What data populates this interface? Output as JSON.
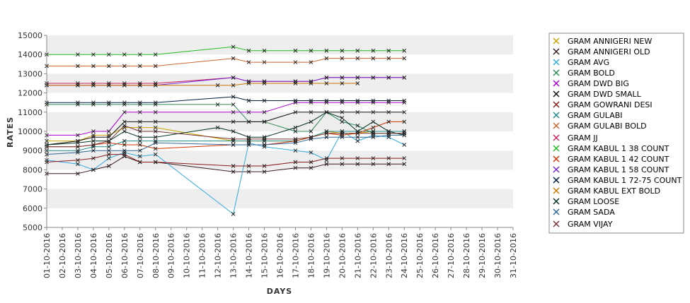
{
  "chart_data": {
    "type": "line",
    "xlabel": "DAYS",
    "ylabel": "RATES",
    "ylim": [
      5000,
      15000
    ],
    "yticks": [
      5000,
      6000,
      7000,
      8000,
      9000,
      10000,
      11000,
      12000,
      13000,
      14000,
      15000
    ],
    "x": [
      "01-10-2016",
      "02-10-2016",
      "03-10-2016",
      "04-10-2016",
      "05-10-2016",
      "06-10-2016",
      "07-10-2016",
      "08-10-2016",
      "09-10-2016",
      "10-10-2016",
      "11-10-2016",
      "12-10-2016",
      "13-10-2016",
      "14-10-2016",
      "15-10-2016",
      "16-10-2016",
      "17-10-2016",
      "18-10-2016",
      "19-10-2016",
      "20-10-2016",
      "21-10-2016",
      "22-10-2016",
      "23-10-2016",
      "24-10-2016",
      "25-10-2016",
      "26-10-2016",
      "27-10-2016",
      "28-10-2016",
      "29-10-2016",
      "30-10-2016",
      "31-10-2016"
    ],
    "grid": "alternating horizontal bands",
    "legend_position": "right",
    "series": [
      {
        "name": "GRAM ANNIGERI NEW",
        "color": "#c9a400",
        "values": [
          9500,
          null,
          9500,
          9800,
          9800,
          10200,
          10200,
          10200,
          null,
          null,
          null,
          null,
          9500,
          9500,
          9500,
          null,
          9500,
          9700,
          10000,
          9900,
          9900,
          10000,
          10000,
          10000,
          null,
          null,
          null,
          null,
          null,
          null,
          null
        ]
      },
      {
        "name": "GRAM ANNIGERI OLD",
        "color": "#3a1a1a",
        "values": [
          7800,
          null,
          7800,
          8000,
          8200,
          8700,
          8400,
          8400,
          null,
          null,
          null,
          null,
          7900,
          7900,
          7900,
          null,
          8100,
          8100,
          8300,
          8300,
          8300,
          8300,
          8300,
          8300,
          null,
          null,
          null,
          null,
          null,
          null,
          null
        ]
      },
      {
        "name": "GRAM AVG",
        "color": "#33aadd",
        "values": [
          8500,
          null,
          8300,
          8000,
          8600,
          8900,
          8700,
          8800,
          null,
          null,
          null,
          null,
          5700,
          9400,
          9200,
          null,
          9000,
          8900,
          8500,
          10000,
          9500,
          9800,
          9700,
          9300,
          null,
          null,
          null,
          null,
          null,
          null,
          null
        ]
      },
      {
        "name": "GRAM BOLD",
        "color": "#2e8b57",
        "values": [
          11400,
          null,
          11400,
          11400,
          11400,
          11400,
          11400,
          11400,
          null,
          null,
          null,
          11400,
          11400,
          10500,
          10500,
          null,
          10000,
          10000,
          11000,
          10500,
          10300,
          9900,
          9900,
          9900,
          null,
          null,
          null,
          null,
          null,
          null,
          null
        ]
      },
      {
        "name": "GRAM DWD BIG",
        "color": "#aa00cc",
        "values": [
          9800,
          null,
          9800,
          10000,
          10000,
          11000,
          11000,
          11000,
          null,
          null,
          null,
          null,
          11000,
          11000,
          11000,
          null,
          11500,
          11500,
          11500,
          11500,
          11500,
          11500,
          11500,
          11500,
          null,
          null,
          null,
          null,
          null,
          null,
          null
        ]
      },
      {
        "name": "GRAM DWD SMALL",
        "color": "#111111",
        "values": [
          9300,
          null,
          9500,
          9700,
          9700,
          10500,
          10500,
          10500,
          null,
          null,
          null,
          null,
          10500,
          10500,
          10500,
          null,
          11000,
          11000,
          11000,
          11000,
          11000,
          11000,
          11000,
          11000,
          null,
          null,
          null,
          null,
          null,
          null,
          null
        ]
      },
      {
        "name": "GRAM GOWRANI DESI",
        "color": "#8b1a1a",
        "values": [
          8400,
          null,
          8500,
          8600,
          8800,
          8800,
          8400,
          8400,
          null,
          null,
          null,
          null,
          8200,
          8200,
          8200,
          null,
          8400,
          8400,
          8600,
          8600,
          8600,
          8600,
          8600,
          8600,
          null,
          null,
          null,
          null,
          null,
          null,
          null
        ]
      },
      {
        "name": "GRAM GULABI",
        "color": "#1f8a8a",
        "values": [
          9000,
          null,
          9000,
          9200,
          9200,
          9500,
          9500,
          9500,
          null,
          null,
          null,
          null,
          9500,
          9500,
          9500,
          null,
          9500,
          9700,
          10000,
          10000,
          10000,
          10000,
          10000,
          10000,
          null,
          null,
          null,
          null,
          null,
          null,
          null
        ]
      },
      {
        "name": "GRAM GULABI BOLD",
        "color": "#cc6633",
        "values": [
          13400,
          null,
          13400,
          13400,
          13400,
          13400,
          13400,
          13400,
          null,
          null,
          null,
          null,
          13800,
          13600,
          13600,
          null,
          13600,
          13600,
          13800,
          13800,
          13800,
          13800,
          13800,
          13800,
          null,
          null,
          null,
          null,
          null,
          null,
          null
        ]
      },
      {
        "name": "GRAM JJ",
        "color": "#cc2266",
        "values": [
          12500,
          null,
          12500,
          12500,
          12500,
          12500,
          12500,
          12500,
          null,
          null,
          null,
          null,
          12800,
          12600,
          12600,
          null,
          12600,
          12600,
          12800,
          12800,
          12800,
          12800,
          12800,
          12800,
          null,
          null,
          null,
          null,
          null,
          null,
          null
        ]
      },
      {
        "name": "GRAM KABUL 1 38 COUNT",
        "color": "#22bb22",
        "values": [
          14000,
          null,
          14000,
          14000,
          14000,
          14000,
          14000,
          14000,
          null,
          null,
          null,
          null,
          14400,
          14200,
          14200,
          null,
          14200,
          14200,
          14200,
          14200,
          14200,
          14200,
          14200,
          14200,
          null,
          null,
          null,
          null,
          null,
          null,
          null
        ]
      },
      {
        "name": "GRAM KABUL 1 42 COUNT",
        "color": "#cc3300",
        "values": [
          9200,
          null,
          9200,
          9300,
          9400,
          9300,
          9300,
          9100,
          null,
          null,
          null,
          null,
          9300,
          9300,
          9300,
          null,
          9500,
          9700,
          9900,
          9800,
          9900,
          10200,
          10500,
          10500,
          null,
          null,
          null,
          null,
          null,
          null,
          null
        ]
      },
      {
        "name": "GRAM KABUL 1 58 COUNT",
        "color": "#7722cc",
        "values": [
          12400,
          null,
          12400,
          12400,
          12400,
          12400,
          12400,
          12400,
          null,
          null,
          null,
          null,
          12800,
          12600,
          12600,
          null,
          12600,
          12600,
          12800,
          12800,
          12800,
          12800,
          12800,
          12800,
          null,
          null,
          null,
          null,
          null,
          null,
          null
        ]
      },
      {
        "name": "GRAM KABUL 1 72-75 COUNT",
        "color": "#002244",
        "values": [
          11500,
          null,
          11500,
          11500,
          11500,
          11500,
          11500,
          11500,
          null,
          null,
          null,
          null,
          11800,
          11600,
          11600,
          null,
          11600,
          11600,
          11600,
          11600,
          11600,
          11600,
          11600,
          11600,
          null,
          null,
          null,
          null,
          null,
          null,
          null
        ]
      },
      {
        "name": "GRAM KABUL EXT BOLD",
        "color": "#cc7700",
        "values": [
          12400,
          null,
          12400,
          12400,
          12400,
          12400,
          12400,
          12400,
          null,
          null,
          null,
          12400,
          12400,
          12500,
          12500,
          null,
          12500,
          12500,
          12500,
          12500,
          12500,
          null,
          null,
          null,
          null,
          null,
          null,
          null,
          null,
          null,
          null
        ]
      },
      {
        "name": "GRAM LOOSE",
        "color": "#003322",
        "values": [
          9300,
          null,
          9400,
          9500,
          9500,
          10000,
          9700,
          9700,
          null,
          null,
          null,
          10200,
          10000,
          9700,
          9700,
          null,
          10200,
          10500,
          11000,
          10700,
          10000,
          10500,
          10000,
          9800,
          null,
          null,
          null,
          null,
          null,
          null,
          null
        ]
      },
      {
        "name": "GRAM SADA",
        "color": "#336699",
        "values": [
          8800,
          null,
          8900,
          9000,
          9000,
          9000,
          9000,
          9400,
          null,
          null,
          null,
          null,
          9300,
          9300,
          9300,
          null,
          9400,
          9600,
          9700,
          9700,
          9700,
          9700,
          9800,
          9800,
          null,
          null,
          null,
          null,
          null,
          null,
          null
        ]
      },
      {
        "name": "GRAM VIJAY",
        "color": "#773333",
        "values": [
          9200,
          null,
          9200,
          9300,
          9500,
          10300,
          10000,
          10000,
          null,
          null,
          null,
          null,
          9600,
          9600,
          9600,
          null,
          9600,
          9700,
          9900,
          9900,
          9900,
          9900,
          9900,
          9900,
          null,
          null,
          null,
          null,
          null,
          null,
          null
        ]
      }
    ]
  }
}
